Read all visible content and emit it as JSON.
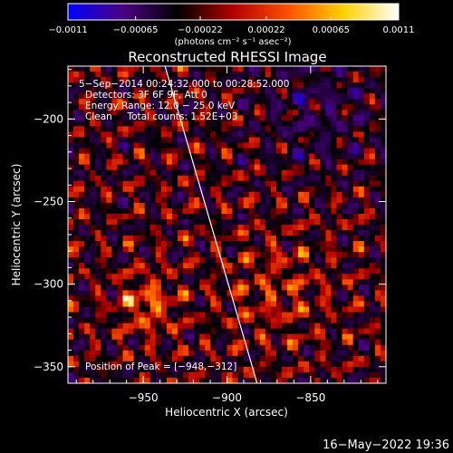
{
  "chart_data": {
    "type": "heatmap",
    "title": "Reconstructed RHESSI Image",
    "xlabel": "Heliocentric X (arcsec)",
    "ylabel": "Heliocentric Y (arcsec)",
    "xlim": [
      -995,
      -805
    ],
    "ylim": [
      -360,
      -168
    ],
    "x_ticks": [
      {
        "value": -950,
        "label": "−950"
      },
      {
        "value": -900,
        "label": "−900"
      },
      {
        "value": -850,
        "label": "−850"
      }
    ],
    "y_ticks": [
      {
        "value": -200,
        "label": "−200"
      },
      {
        "value": -250,
        "label": "−250"
      },
      {
        "value": -300,
        "label": "−300"
      },
      {
        "value": -350,
        "label": "−350"
      }
    ],
    "colorbar": {
      "min": -0.0011,
      "max": 0.0011,
      "ticks": [
        {
          "value": -0.0011,
          "label": "−0.0011"
        },
        {
          "value": -0.00065,
          "label": "−0.00065"
        },
        {
          "value": -0.00022,
          "label": "−0.00022"
        },
        {
          "value": 0.00022,
          "label": "0.00022"
        },
        {
          "value": 0.00065,
          "label": "0.00065"
        },
        {
          "value": 0.0011,
          "label": "0.0011"
        }
      ],
      "unit_label": "(photons cm⁻² s⁻¹ asec⁻²)",
      "colors": [
        "#0000ff",
        "#4b0082",
        "#000000",
        "#b40000",
        "#ff5000",
        "#ffd200",
        "#ffffff"
      ]
    },
    "info_lines": [
      "5−Sep−2014 00:24:32.000 to 00:28:52.000",
      "Detectors: 3F 6F 9F, Att 0",
      "Energy Range: 12.0 − 25.0 keV",
      "Clean     Total counts: 1.52E+03"
    ],
    "peak_label": "Position of Peak = [−948,−312]",
    "peak": {
      "x": -948,
      "y": -312
    },
    "limb_line": [
      {
        "x": -937,
        "y": -168
      },
      {
        "x": -882,
        "y": -360
      }
    ],
    "timestamp": "16−May−2022 19:36"
  }
}
